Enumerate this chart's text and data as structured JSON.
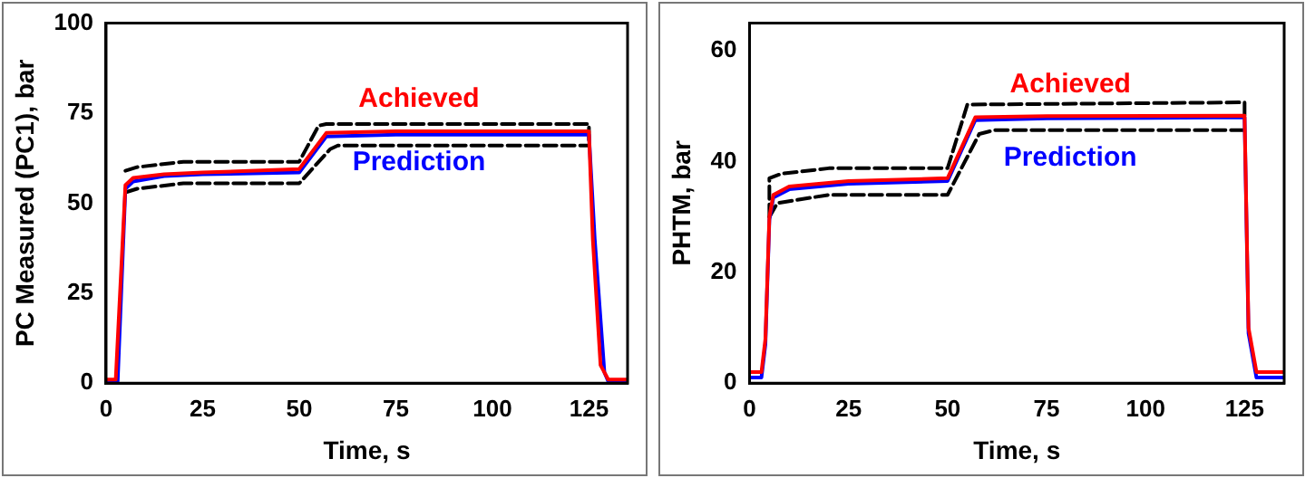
{
  "chart_data": [
    {
      "type": "line",
      "xlabel": "Time, s",
      "ylabel": "PC Measured (PC1), bar",
      "xlim": [
        0,
        135
      ],
      "xticks": [
        0,
        25,
        50,
        75,
        100,
        125
      ],
      "ylim": [
        0,
        100
      ],
      "yticks": [
        0,
        25,
        50,
        75,
        100
      ],
      "grid": false,
      "legend": false,
      "marker": "none",
      "series": [
        {
          "name": "Achieved",
          "color": "#ff0000",
          "x": [
            0,
            2.5,
            5,
            7,
            15,
            25,
            50,
            57,
            75,
            125,
            126,
            128,
            130,
            135
          ],
          "values": [
            1,
            1,
            55,
            57,
            58,
            58.5,
            59.5,
            69.5,
            70,
            70,
            40,
            5,
            1,
            1
          ]
        },
        {
          "name": "Prediction",
          "color": "#0000ff",
          "x": [
            0,
            3,
            5,
            7,
            15,
            25,
            50,
            57,
            75,
            125,
            126.5,
            129,
            130,
            135
          ],
          "values": [
            0.5,
            0.5,
            54,
            56,
            57.5,
            58,
            58.5,
            68.5,
            69,
            69,
            40,
            3,
            0.5,
            0.5
          ]
        },
        {
          "color": "#000000",
          "line_style": "dashed",
          "x": [
            5,
            8,
            20,
            50,
            55,
            57,
            125,
            125
          ],
          "values": [
            59,
            60,
            61.5,
            61.5,
            71.5,
            72,
            72,
            67
          ]
        },
        {
          "color": "#000000",
          "line_style": "dashed",
          "x": [
            5,
            8,
            20,
            50,
            58,
            60,
            125
          ],
          "values": [
            53,
            54,
            55.5,
            55.5,
            65,
            66,
            66
          ]
        }
      ]
    },
    {
      "type": "line",
      "xlabel": "Time, s",
      "ylabel": "PHTM, bar",
      "xlim": [
        0,
        135
      ],
      "xticks": [
        0,
        25,
        50,
        75,
        100,
        125
      ],
      "ylim": [
        0,
        65
      ],
      "yticks": [
        0,
        20,
        40,
        60
      ],
      "grid": false,
      "legend": false,
      "marker": "none",
      "series": [
        {
          "name": "Achieved",
          "color": "#ff0000",
          "x": [
            0,
            3,
            4,
            5,
            6,
            10,
            25,
            50,
            57,
            75,
            125,
            126,
            128,
            135
          ],
          "values": [
            2,
            2,
            8,
            30,
            34,
            35.5,
            36.5,
            37,
            48,
            48.2,
            48.3,
            10,
            2,
            2
          ]
        },
        {
          "name": "Prediction",
          "color": "#0000ff",
          "x": [
            0,
            3,
            4,
            5,
            6,
            10,
            25,
            50,
            57,
            75,
            125,
            126,
            128,
            135
          ],
          "values": [
            1,
            1,
            7,
            29.5,
            33.5,
            35,
            36,
            36.5,
            47.5,
            47.8,
            48,
            9,
            1,
            1
          ]
        },
        {
          "color": "#000000",
          "line_style": "dashed",
          "x": [
            5,
            5,
            8,
            20,
            50,
            55,
            125,
            125
          ],
          "values": [
            30,
            37,
            37.8,
            38.8,
            38.8,
            50.3,
            50.7,
            48
          ]
        },
        {
          "color": "#000000",
          "line_style": "dashed",
          "x": [
            5,
            7,
            20,
            50,
            58,
            62,
            125
          ],
          "values": [
            30,
            32.5,
            34,
            34,
            45,
            45.7,
            45.7
          ]
        }
      ]
    }
  ]
}
